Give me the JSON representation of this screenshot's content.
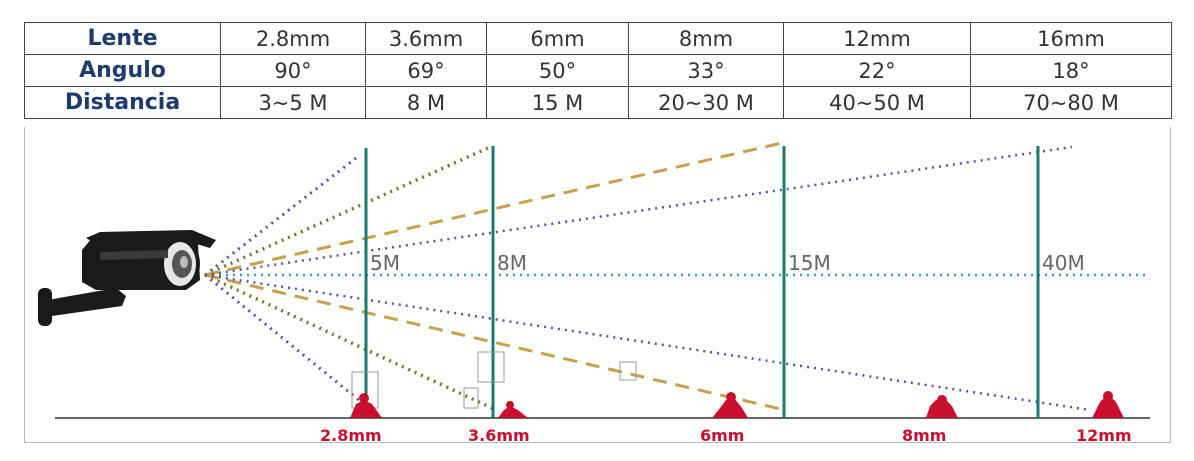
{
  "table": {
    "rows": [
      {
        "header": "Lente",
        "cells": [
          "2.8mm",
          "3.6mm",
          "6mm",
          "8mm",
          "12mm",
          "16mm"
        ]
      },
      {
        "header": "Angulo",
        "cells": [
          "90°",
          "69°",
          "50°",
          "33°",
          "22°",
          "18°"
        ]
      },
      {
        "header": "Distancia",
        "cells": [
          "3~5 M",
          "8 M",
          "15 M",
          "20~30 M",
          "40~50 M",
          "70~80 M"
        ]
      }
    ]
  },
  "diagram": {
    "distance_markers": [
      "5M",
      "8M",
      "15M",
      "40M"
    ],
    "lens_markers": [
      "2.8mm",
      "3.6mm",
      "6mm",
      "8mm",
      "12mm"
    ],
    "colors": {
      "post": "#1e7a70",
      "cone_purple": "#5a4fb0",
      "cone_olive": "#6e7a2a",
      "cone_gold": "#c8a24a",
      "axis": "#2aa5a0",
      "person": "#c8102e",
      "camera": "#1a1a1a",
      "ground": "#666666"
    }
  }
}
